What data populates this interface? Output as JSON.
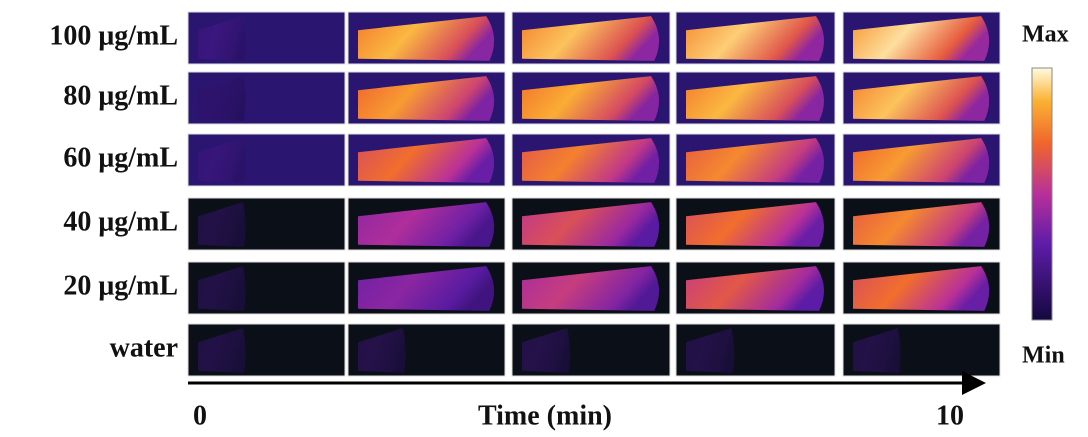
{
  "rows": [
    {
      "label": "100 μg/mL"
    },
    {
      "label": "80 μg/mL"
    },
    {
      "label": "60 μg/mL"
    },
    {
      "label": "40 μg/mL"
    },
    {
      "label": "20 μg/mL"
    },
    {
      "label": "water"
    }
  ],
  "colorbar": {
    "max": "Max",
    "min": "Min"
  },
  "time_axis": {
    "start": "0",
    "label": "Time (min)",
    "end": "10"
  }
}
